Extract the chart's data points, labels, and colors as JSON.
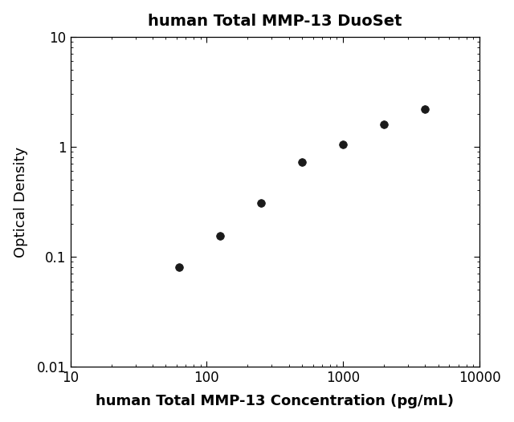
{
  "title": "human Total MMP-13 DuoSet",
  "xlabel": "human Total MMP-13 Concentration (pg/mL)",
  "ylabel": "Optical Density",
  "x_data": [
    62.5,
    125,
    250,
    500,
    1000,
    2000,
    4000
  ],
  "y_data": [
    0.08,
    0.155,
    0.31,
    0.72,
    1.05,
    1.6,
    2.2
  ],
  "xlim": [
    10,
    10000
  ],
  "ylim": [
    0.01,
    10
  ],
  "xticks": [
    10,
    100,
    1000,
    10000
  ],
  "yticks": [
    0.01,
    0.1,
    1,
    10
  ],
  "line_color": "#3a3a3a",
  "marker_color": "#1a1a1a",
  "marker_size": 7,
  "background_color": "#ffffff",
  "title_fontsize": 14,
  "label_fontsize": 13,
  "tick_fontsize": 12
}
